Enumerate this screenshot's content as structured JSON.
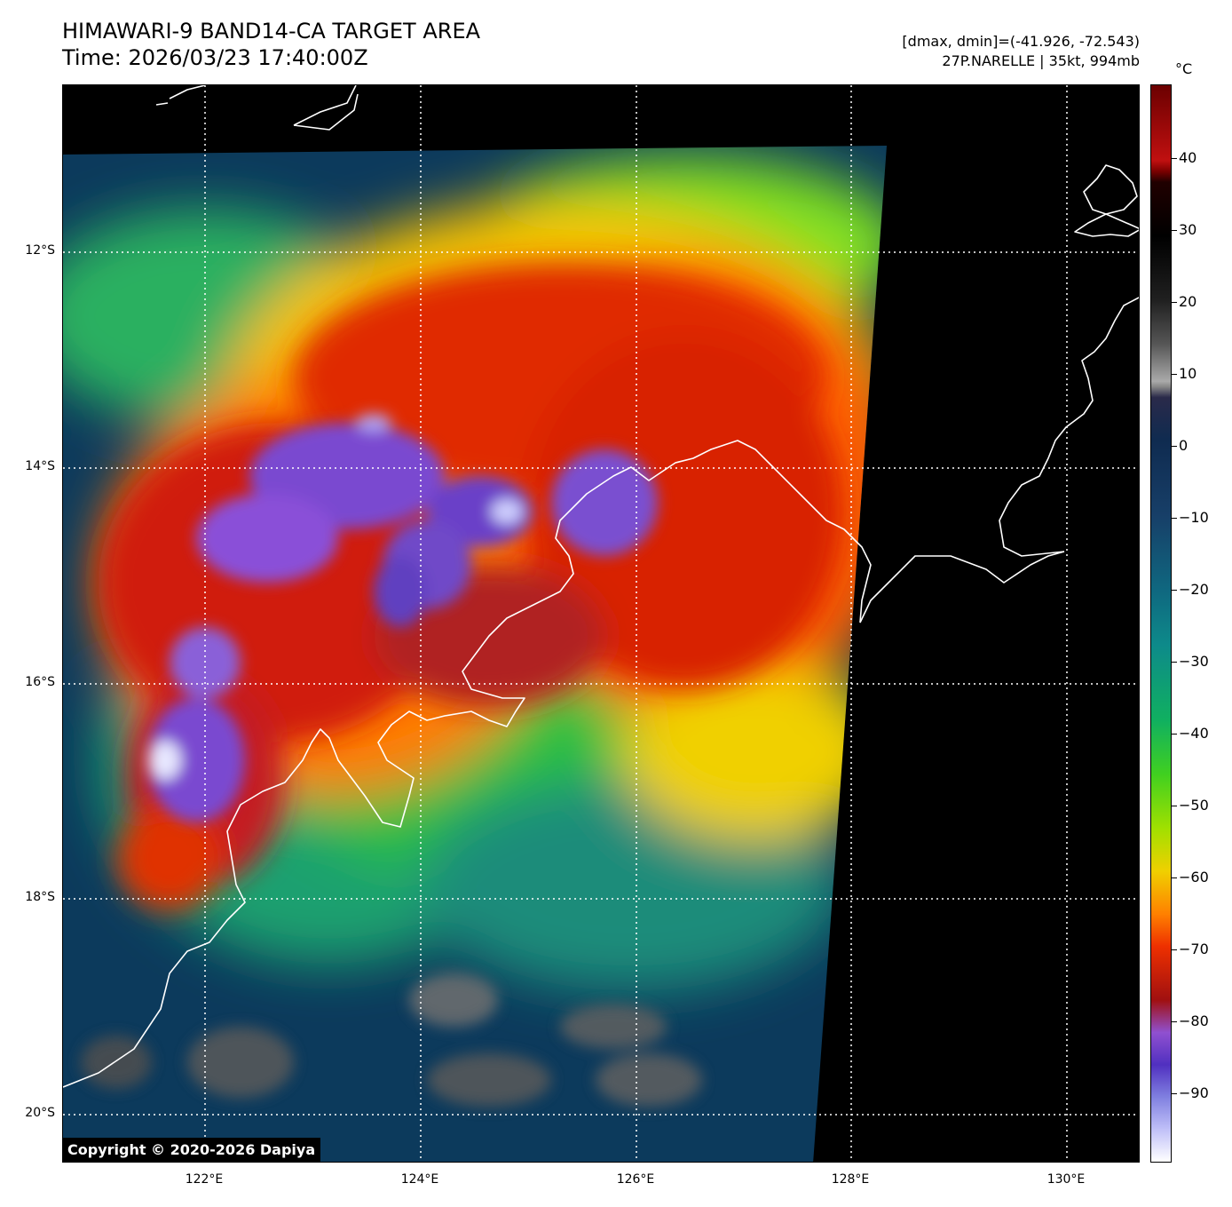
{
  "header": {
    "title_line1": "HIMAWARI-9 BAND14-CA TARGET AREA",
    "title_line2": "Time: 2026/03/23 17:40:00Z",
    "range_text": "[dmax, dmin]=(-41.926, -72.543)",
    "storm_text": "27P.NARELLE | 35kt, 994mb"
  },
  "map": {
    "lat_labels": [
      "12°S",
      "14°S",
      "16°S",
      "18°S",
      "20°S"
    ],
    "lon_labels": [
      "122°E",
      "124°E",
      "126°E",
      "128°E",
      "130°E"
    ],
    "coastline_color": "#ffffff",
    "gridline_color": "#ffffff"
  },
  "colorbar": {
    "unit": "°C",
    "ticks": [
      "40",
      "30",
      "20",
      "10",
      "0",
      "−10",
      "−20",
      "−30",
      "−40",
      "−50",
      "−60",
      "−70",
      "−80",
      "−90"
    ]
  },
  "footer": {
    "copyright": "Copyright © 2020-2026 Dapiya"
  }
}
